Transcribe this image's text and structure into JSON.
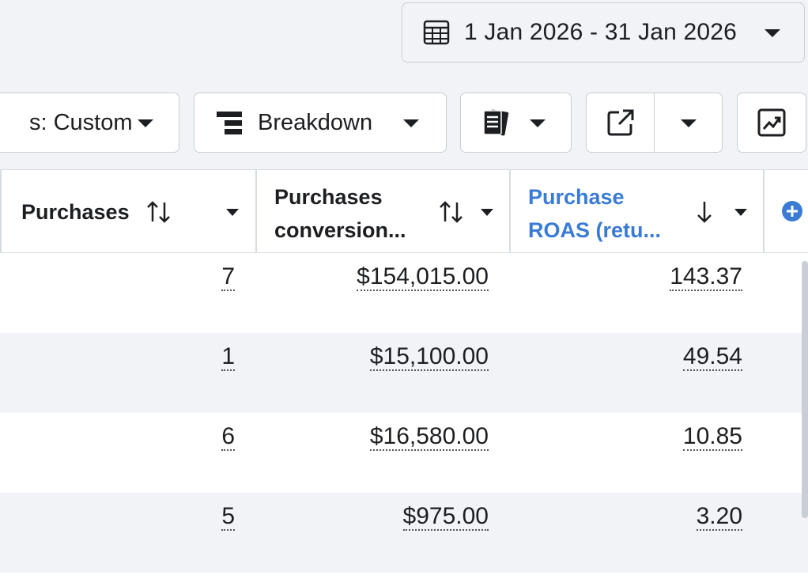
{
  "date_range": {
    "label": "1 Jan 2026 - 31 Jan 2026"
  },
  "toolbar": {
    "columns_label": "s: Custom",
    "breakdown_label": "Breakdown"
  },
  "table": {
    "headers": {
      "purchases": "Purchases",
      "conversion_line1": "Purchases",
      "conversion_line2": "conversion...",
      "roas_line1": "Purchase",
      "roas_line2": "ROAS (retu..."
    },
    "rows": [
      {
        "purchases": "7",
        "conversion_value": "$154,015.00",
        "roas": "143.37"
      },
      {
        "purchases": "1",
        "conversion_value": "$15,100.00",
        "roas": "49.54"
      },
      {
        "purchases": "6",
        "conversion_value": "$16,580.00",
        "roas": "10.85"
      },
      {
        "purchases": "5",
        "conversion_value": "$975.00",
        "roas": "3.20"
      }
    ]
  },
  "colors": {
    "accent": "#3a7bd5",
    "band": "#f1f3f6",
    "border": "#c9ced6"
  }
}
